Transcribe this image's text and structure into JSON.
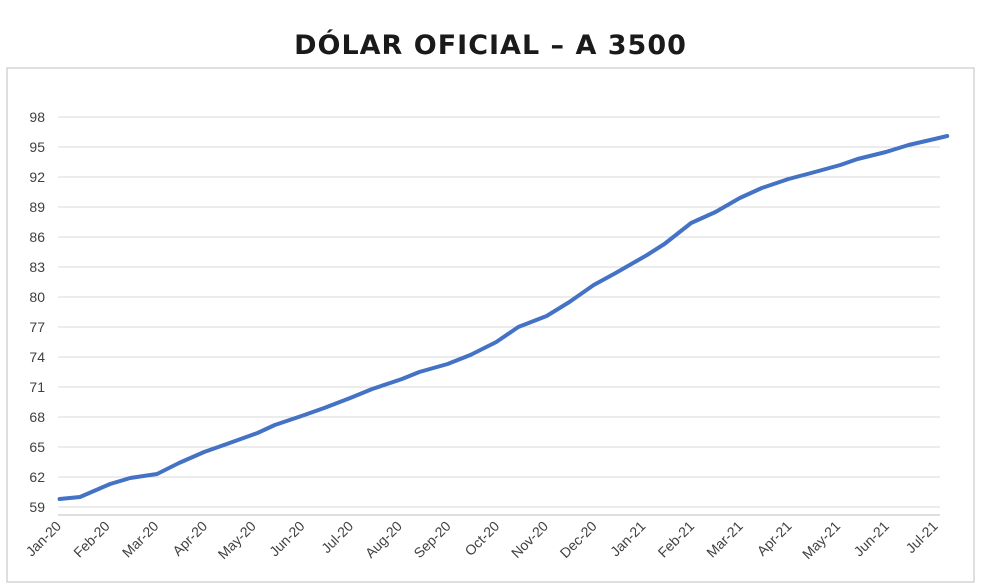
{
  "chart_data": {
    "type": "line",
    "title": "DÓLAR OFICIAL – A 3500",
    "xlabel": "",
    "ylabel": "",
    "x_ticks": [
      "Jan-20",
      "Feb-20",
      "Mar-20",
      "Apr-20",
      "May-20",
      "Jun-20",
      "Jul-20",
      "Aug-20",
      "Sep-20",
      "Oct-20",
      "Nov-20",
      "Dec-20",
      "Jan-21",
      "Feb-21",
      "Mar-21",
      "Apr-21",
      "May-21",
      "Jun-21",
      "Jul-21"
    ],
    "y_ticks": [
      59,
      62,
      65,
      68,
      71,
      74,
      77,
      80,
      83,
      86,
      89,
      92,
      95,
      98
    ],
    "ylim": [
      58,
      99
    ],
    "grid": true,
    "legend": "none",
    "colors": {
      "line": "#4472C4",
      "grid": "#d9d9d9",
      "axis": "#bfbfbf"
    },
    "series": [
      {
        "x": [
          "2020-01-02",
          "2020-01-15",
          "2020-02-03",
          "2020-02-15",
          "2020-03-02",
          "2020-03-16",
          "2020-04-01",
          "2020-04-15",
          "2020-05-04",
          "2020-05-15",
          "2020-06-01",
          "2020-06-15",
          "2020-07-01",
          "2020-07-15",
          "2020-08-03",
          "2020-08-14",
          "2020-09-01",
          "2020-09-15",
          "2020-10-01",
          "2020-10-15",
          "2020-11-02",
          "2020-11-16",
          "2020-12-01",
          "2020-12-15",
          "2021-01-04",
          "2021-01-15",
          "2021-02-01",
          "2021-02-15",
          "2021-03-01",
          "2021-03-15",
          "2021-04-01",
          "2021-04-15",
          "2021-05-03",
          "2021-05-14",
          "2021-06-01",
          "2021-06-15",
          "2021-07-01",
          "2021-07-09"
        ],
        "values": [
          59.8,
          60.0,
          61.3,
          61.9,
          62.3,
          63.4,
          64.5,
          65.3,
          66.4,
          67.2,
          68.1,
          68.9,
          69.9,
          70.8,
          71.8,
          72.5,
          73.3,
          74.2,
          75.5,
          77.0,
          78.1,
          79.5,
          81.2,
          82.4,
          84.2,
          85.3,
          87.4,
          88.5,
          89.9,
          90.9,
          91.8,
          92.4,
          93.2,
          93.8,
          94.5,
          95.2,
          95.8,
          96.1
        ]
      }
    ]
  }
}
